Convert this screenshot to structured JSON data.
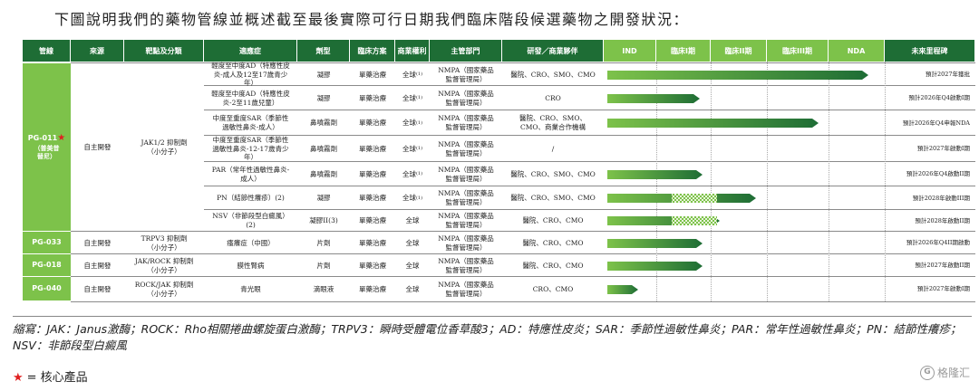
{
  "title": "下圖說明我們的藥物管線並概述截至最後實際可行日期我們臨床階段候選藥物之開發狀況：",
  "colors": {
    "dark_green": "#1e6d35",
    "light_green": "#7dc24a",
    "star": "#e02020"
  },
  "headers": [
    "管線",
    "來源",
    "靶點及分類",
    "適應症",
    "劑型",
    "臨床方案",
    "商業權利",
    "主管部門",
    "研發／商業夥伴",
    "IND",
    "臨床I期",
    "臨床II期",
    "臨床III期",
    "NDA",
    "未來里程碑"
  ],
  "stages": [
    "IND",
    "臨床I期",
    "臨床II期",
    "臨床III期",
    "NDA"
  ],
  "programs": [
    {
      "name": "PG-011",
      "sub": "（普美昔替尼）",
      "star": "★",
      "source": "自主開發",
      "target": "JAK1/2 抑制劑",
      "target_class": "（小分子）"
    },
    {
      "name": "PG-033",
      "sub": "",
      "star": "",
      "source": "自主開發",
      "target": "TRPV3 抑制劑",
      "target_class": "（小分子）"
    },
    {
      "name": "PG-018",
      "sub": "",
      "star": "",
      "source": "自主開發",
      "target": "JAK/ROCK 抑制劑",
      "target_class": "（小分子）"
    },
    {
      "name": "PG-040",
      "sub": "",
      "star": "",
      "source": "自主開發",
      "target": "ROCK/JAK 抑制劑",
      "target_class": "（小分子）"
    }
  ],
  "rows": [
    {
      "indication": "輕度至中度AD（特應性皮炎-成人及12至17歲青少年）",
      "form": "凝膠",
      "scheme": "單藥治療",
      "rights": "全球",
      "rights_sup": "(1)",
      "authority": "NMPA（國家藥品監督管理局）",
      "partner": "醫院、CRO、SMO、CMO",
      "milestone": "預計2027年獲批",
      "progress": 0.93,
      "dotted": []
    },
    {
      "indication": "輕度至中度AD（特應性皮炎-2至11歲兒童）",
      "form": "凝膠",
      "scheme": "單藥治療",
      "rights": "全球",
      "rights_sup": "(1)",
      "authority": "NMPA（國家藥品監督管理局）",
      "partner": "CRO",
      "milestone": "預計2026年Q4啟動I期",
      "progress": 0.33,
      "dotted": []
    },
    {
      "indication": "中度至重度SAR（季節性過敏性鼻炎-成人）",
      "form": "鼻噴霧劑",
      "scheme": "單藥治療",
      "rights": "全球",
      "rights_sup": "(1)",
      "authority": "NMPA（國家藥品監督管理局）",
      "partner": "醫院、CRO、SMO、CMO、商業合作機構",
      "milestone": "預計2026年Q4申報NDA",
      "progress": 0.75,
      "dotted": []
    },
    {
      "indication": "中度至重度SAR（季節性過敏性鼻炎-12-17歲青少年）",
      "form": "鼻噴霧劑",
      "scheme": "單藥治療",
      "rights": "全球",
      "rights_sup": "(1)",
      "authority": "NMPA（國家藥品監督管理局）",
      "partner": "/",
      "milestone": "預計2027年啟動I期",
      "progress": 0.0,
      "dotted": []
    },
    {
      "indication": "PAR（常年性過敏性鼻炎-成人）",
      "form": "鼻噴霧劑",
      "scheme": "單藥治療",
      "rights": "全球",
      "rights_sup": "(1)",
      "authority": "NMPA（國家藥品監督管理局）",
      "partner": "醫院、CRO、SMO、CMO",
      "milestone": "預計2026年Q4啟動II期",
      "progress": 0.34,
      "dotted": []
    },
    {
      "indication": "PN（結節性癢疹）(2)",
      "form": "凝膠",
      "scheme": "單藥治療",
      "rights": "全球",
      "rights_sup": "(1)",
      "authority": "NMPA（國家藥品監督管理局）",
      "partner": "醫院、CRO、SMO、CMO",
      "milestone": "預計2028年啟動III期",
      "progress": 0.53,
      "dotted": [
        0.23,
        0.39
      ]
    },
    {
      "indication": "NSV（非節段型白癜風）(2)",
      "form": "凝膠II(3)",
      "scheme": "單藥治療",
      "rights": "全球",
      "rights_sup": "",
      "authority": "NMPA（國家藥品監督管理局）",
      "partner": "醫院、CRO、CMO",
      "milestone": "預計2028年啟動II期",
      "progress": 0.4,
      "dotted": [
        0.23,
        0.39
      ]
    },
    {
      "indication": "瘙癢症（中國）",
      "form": "片劑",
      "scheme": "單藥治療",
      "rights": "全球",
      "rights_sup": "",
      "authority": "NMPA（國家藥品監督管理局）",
      "partner": "醫院、CRO、CMO",
      "milestone": "預計2026年Q4II期啟動",
      "progress": 0.34,
      "dotted": []
    },
    {
      "indication": "膜性腎病",
      "form": "片劑",
      "scheme": "單藥治療",
      "rights": "全球",
      "rights_sup": "",
      "authority": "NMPA（國家藥品監督管理局）",
      "partner": "醫院、CRO、CMO",
      "milestone": "預計2027年啟動II期",
      "progress": 0.34,
      "dotted": []
    },
    {
      "indication": "青光眼",
      "form": "滴眼液",
      "scheme": "單藥治療",
      "rights": "全球",
      "rights_sup": "",
      "authority": "NMPA（國家藥品監督管理局）",
      "partner": "CRO、CMO",
      "milestone": "預計2027年啟動I期",
      "progress": 0.11,
      "dotted": []
    }
  ],
  "legend": "縮寫：JAK：Janus激酶；ROCK：Rho相關捲曲螺旋蛋白激酶；TRPV3：瞬時受體電位香草酸3；AD：特應性皮炎；SAR：季節性過敏性鼻炎；PAR：常年性過敏性鼻炎；PN：結節性癢疹；NSV：非節段型白癜風",
  "star_note": {
    "symbol": "★",
    "text": "= 核心產品"
  },
  "watermark": "格隆汇"
}
